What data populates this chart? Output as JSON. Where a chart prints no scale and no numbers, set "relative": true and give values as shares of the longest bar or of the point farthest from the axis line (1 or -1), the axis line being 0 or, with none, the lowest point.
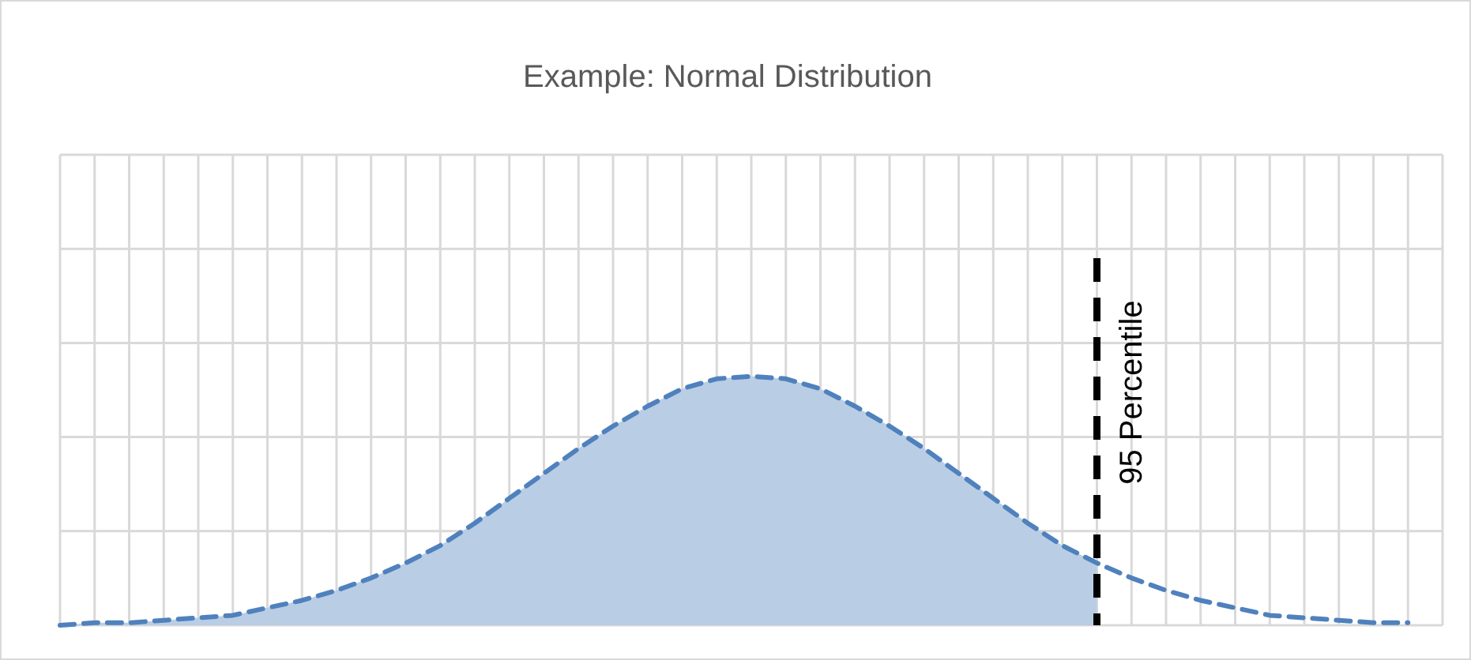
{
  "chart_data": {
    "type": "line",
    "title": "Example: Normal Distribution",
    "relative": true,
    "grid": true,
    "categories": [
      null,
      null,
      null,
      null,
      null,
      null,
      null,
      null,
      null,
      null,
      null,
      null,
      null,
      null,
      null,
      null,
      null,
      null,
      null,
      null,
      null,
      null,
      null,
      null,
      null,
      null,
      null,
      null,
      null,
      null,
      null,
      null,
      null,
      null,
      null,
      null,
      null,
      null,
      null,
      null
    ],
    "series": [
      {
        "type": "area",
        "color": "#b9cde5",
        "values": [
          0.0,
          0.01,
          0.01,
          0.02,
          0.03,
          0.04,
          0.07,
          0.1,
          0.14,
          0.19,
          0.25,
          0.32,
          0.41,
          0.51,
          0.61,
          0.71,
          0.8,
          0.88,
          0.95,
          0.99,
          1,
          0.99,
          0.95,
          0.88,
          0.8,
          0.71,
          0.61,
          0.51,
          0.41,
          0.32,
          0.25,
          null,
          null,
          null,
          null,
          null,
          null,
          null,
          null,
          null
        ]
      },
      {
        "color": "#4f81bd",
        "line_style": "dashed",
        "values": [
          0.0,
          0.01,
          0.01,
          0.02,
          0.03,
          0.04,
          0.07,
          0.1,
          0.14,
          0.19,
          0.25,
          0.32,
          0.41,
          0.51,
          0.61,
          0.71,
          0.8,
          0.88,
          0.95,
          0.99,
          1,
          0.99,
          0.95,
          0.88,
          0.8,
          0.71,
          0.61,
          0.51,
          0.41,
          0.32,
          0.25,
          0.19,
          0.14,
          0.1,
          0.07,
          0.04,
          0.03,
          0.02,
          0.01,
          0.01
        ]
      }
    ],
    "ref_lines": [
      {
        "axis": "x",
        "label": "95 Percentile",
        "color": "#000000",
        "line_style": "dashed"
      }
    ]
  }
}
